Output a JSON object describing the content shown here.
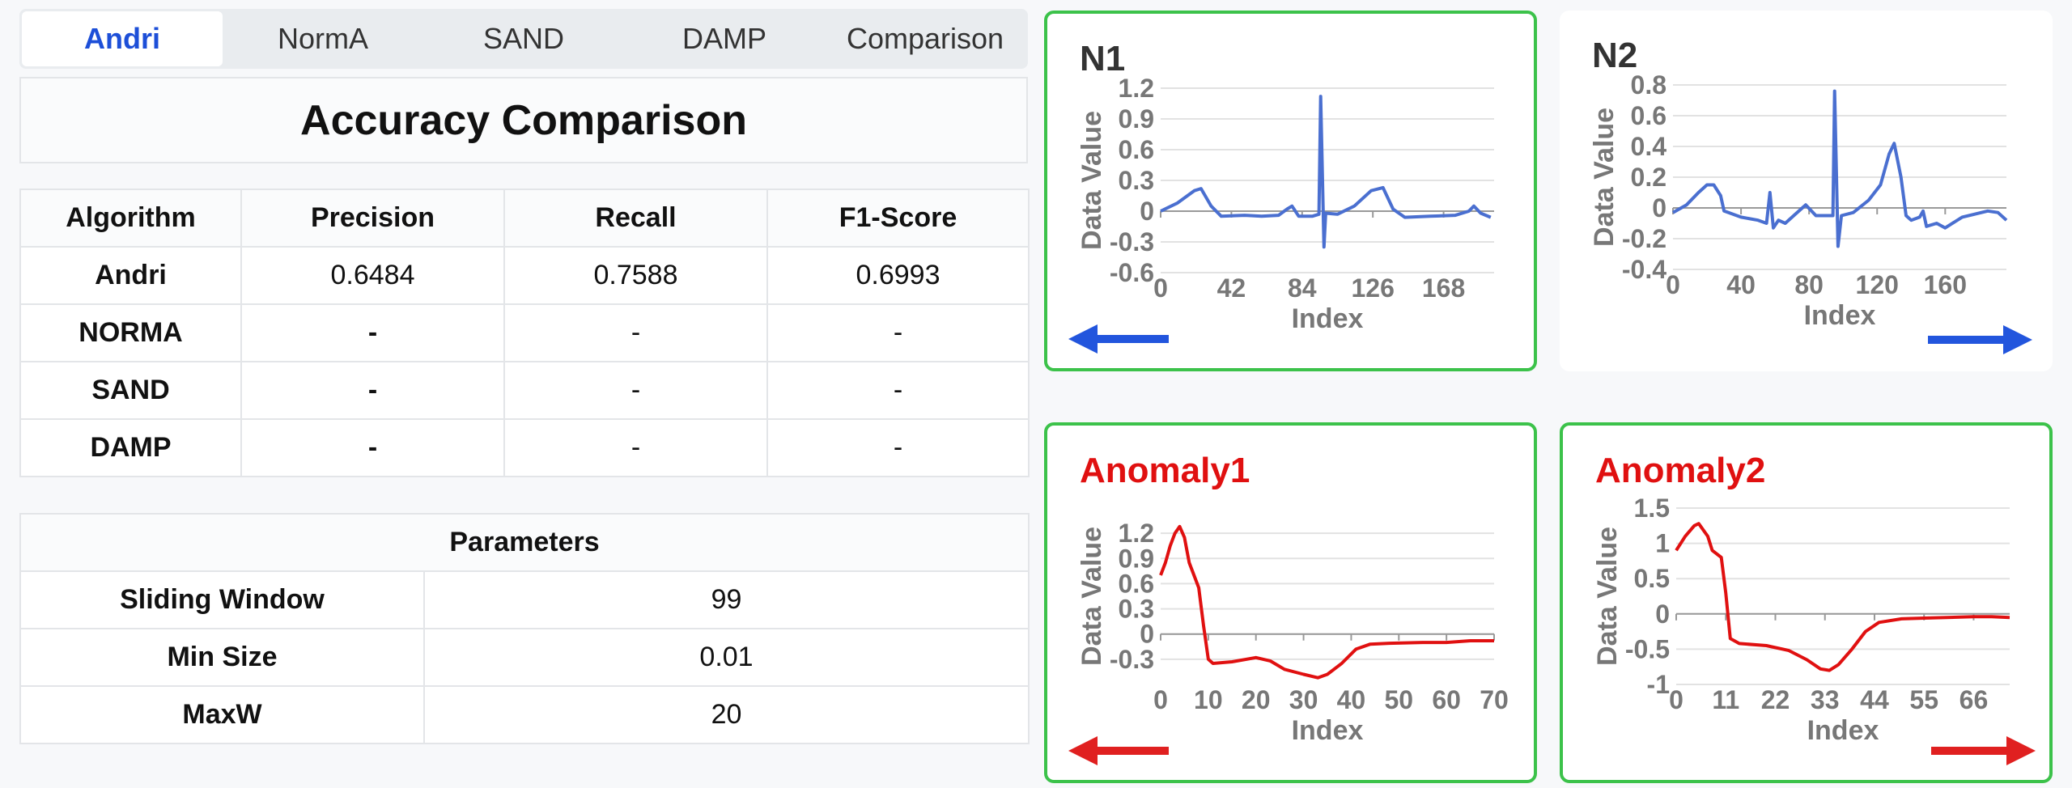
{
  "tabs": [
    "Andri",
    "NormA",
    "SAND",
    "DAMP",
    "Comparison"
  ],
  "accuracy": {
    "title": "Accuracy Comparison",
    "header": [
      "Algorithm",
      "Precision",
      "Recall",
      "F1-Score"
    ],
    "rows": [
      [
        "Andri",
        "0.6484",
        "0.7588",
        "0.6993"
      ],
      [
        "NORMA",
        "-",
        "-",
        "-"
      ],
      [
        "SAND",
        "-",
        "-",
        "-"
      ],
      [
        "DAMP",
        "-",
        "-",
        "-"
      ]
    ]
  },
  "parameters": {
    "title": "Parameters",
    "rows": [
      [
        "Sliding Window",
        "99"
      ],
      [
        "Min Size",
        "0.01"
      ],
      [
        "MaxW",
        "20"
      ]
    ]
  },
  "chart_data": [
    {
      "type": "line",
      "title": "N1",
      "xlabel": "Index",
      "ylabel": "Data Value",
      "color": "#4a6fd0",
      "grid": true,
      "x": [
        0,
        10,
        20,
        24,
        30,
        36,
        50,
        60,
        70,
        75,
        78,
        82,
        90,
        94,
        95,
        97,
        98,
        105,
        115,
        125,
        132,
        138,
        145,
        160,
        175,
        183,
        186,
        190,
        196
      ],
      "values": [
        0,
        0.08,
        0.2,
        0.22,
        0.05,
        -0.05,
        -0.04,
        -0.05,
        -0.04,
        0.02,
        0.05,
        -0.05,
        -0.05,
        -0.03,
        1.12,
        -0.35,
        -0.02,
        -0.03,
        0.05,
        0.2,
        0.23,
        0.02,
        -0.06,
        -0.05,
        -0.04,
        0,
        0.05,
        -0.02,
        -0.06
      ],
      "xlim": [
        0,
        198
      ],
      "xticks": [
        0,
        42,
        84,
        126,
        168
      ],
      "ylim": [
        -0.6,
        1.2
      ],
      "yticks": [
        -0.6,
        -0.3,
        0,
        0.3,
        0.6,
        0.9,
        1.2
      ]
    },
    {
      "type": "line",
      "title": "N2",
      "xlabel": "Index",
      "ylabel": "Data Value",
      "color": "#4a6fd0",
      "grid": true,
      "x": [
        0,
        8,
        15,
        20,
        24,
        28,
        30,
        40,
        50,
        55,
        57,
        59,
        62,
        66,
        72,
        78,
        84,
        94,
        95,
        97,
        99,
        106,
        115,
        122,
        127,
        130,
        134,
        137,
        140,
        145,
        147,
        149,
        155,
        160,
        170,
        185,
        191,
        196
      ],
      "values": [
        -0.03,
        0.02,
        0.1,
        0.15,
        0.15,
        0.08,
        -0.02,
        -0.06,
        -0.08,
        -0.1,
        0.1,
        -0.13,
        -0.08,
        -0.1,
        -0.04,
        0.02,
        -0.05,
        -0.05,
        0.76,
        -0.25,
        -0.05,
        -0.03,
        0.05,
        0.15,
        0.35,
        0.42,
        0.2,
        -0.05,
        -0.08,
        -0.06,
        -0.02,
        -0.12,
        -0.1,
        -0.13,
        -0.06,
        -0.02,
        -0.03,
        -0.08
      ],
      "xlim": [
        0,
        196
      ],
      "xticks": [
        0,
        40,
        80,
        120,
        160
      ],
      "ylim": [
        -0.4,
        0.8
      ],
      "yticks": [
        -0.4,
        -0.2,
        0,
        0.2,
        0.4,
        0.6,
        0.8
      ]
    },
    {
      "type": "line",
      "title": "Anomaly1",
      "xlabel": "Index",
      "ylabel": "Data Value",
      "color": "#e01010",
      "grid": true,
      "x": [
        0,
        1,
        2,
        3,
        4,
        5,
        6,
        7,
        8,
        9,
        10,
        11,
        15,
        20,
        23,
        26,
        30,
        33,
        35,
        38,
        41,
        44,
        48,
        55,
        60,
        65,
        70
      ],
      "values": [
        0.7,
        0.85,
        1.05,
        1.2,
        1.28,
        1.15,
        0.85,
        0.7,
        0.55,
        0.1,
        -0.3,
        -0.35,
        -0.33,
        -0.28,
        -0.32,
        -0.42,
        -0.48,
        -0.52,
        -0.48,
        -0.35,
        -0.18,
        -0.12,
        -0.11,
        -0.1,
        -0.1,
        -0.08,
        -0.08
      ],
      "xlim": [
        0,
        70
      ],
      "xticks": [
        0,
        10,
        20,
        30,
        40,
        50,
        60,
        70
      ],
      "ylim": [
        -0.6,
        1.5
      ],
      "yticks": [
        -0.3,
        0,
        0.3,
        0.6,
        0.9,
        1.2
      ]
    },
    {
      "type": "line",
      "title": "Anomaly2",
      "xlabel": "Index",
      "ylabel": "Data Value",
      "color": "#e01010",
      "grid": true,
      "x": [
        0,
        2,
        4,
        5,
        7,
        8,
        10,
        11,
        12,
        14,
        20,
        25,
        29,
        32,
        34,
        36,
        39,
        42,
        45,
        50,
        55,
        60,
        66,
        70,
        74
      ],
      "values": [
        0.9,
        1.1,
        1.25,
        1.28,
        1.1,
        0.9,
        0.8,
        0.3,
        -0.35,
        -0.42,
        -0.45,
        -0.52,
        -0.65,
        -0.78,
        -0.8,
        -0.72,
        -0.5,
        -0.25,
        -0.12,
        -0.07,
        -0.06,
        -0.05,
        -0.04,
        -0.04,
        -0.05
      ],
      "xlim": [
        0,
        74
      ],
      "xticks": [
        0,
        11,
        22,
        33,
        44,
        55,
        66
      ],
      "ylim": [
        -1,
        1.5
      ],
      "yticks": [
        -1,
        -0.5,
        0,
        0.5,
        1,
        1.5
      ]
    }
  ]
}
